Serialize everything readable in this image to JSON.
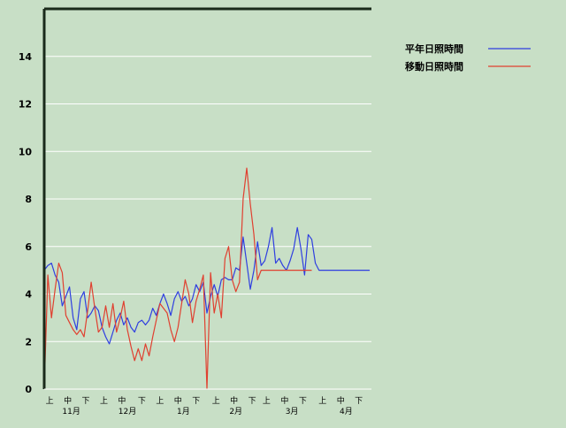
{
  "chart_data": {
    "type": "line",
    "title": "",
    "xlabel": "",
    "ylabel": "",
    "ylim": [
      0,
      16
    ],
    "y_ticks": [
      0,
      2,
      4,
      6,
      8,
      10,
      12,
      14
    ],
    "grid": "horizontal",
    "legend_position": "top-right",
    "x_period_labels": [
      "上",
      "中",
      "下",
      "上",
      "中",
      "下",
      "上",
      "中",
      "下",
      "上",
      "中",
      "下",
      "上",
      "中",
      "下",
      "上",
      "中",
      "下"
    ],
    "x_month_labels": [
      "11月",
      "12月",
      "1月",
      "2月",
      "3月",
      "4月"
    ],
    "period_start_days": [
      0,
      10,
      20,
      30,
      40,
      51,
      61,
      71,
      81,
      92,
      102,
      112,
      120,
      130,
      140,
      151,
      161,
      171
    ],
    "month_label_days": [
      15,
      46,
      77,
      106,
      137,
      167
    ],
    "x_domain_days": [
      0,
      181
    ],
    "series": [
      {
        "name": "平年日照時間",
        "color": "#2f3fe0",
        "x": [
          0,
          2,
          4,
          6,
          8,
          10,
          12,
          14,
          16,
          18,
          20,
          22,
          24,
          26,
          28,
          30,
          32,
          34,
          36,
          38,
          40,
          42,
          44,
          46,
          48,
          50,
          52,
          54,
          56,
          58,
          60,
          62,
          64,
          66,
          68,
          70,
          72,
          74,
          76,
          78,
          80,
          82,
          84,
          86,
          88,
          90,
          92,
          94,
          96,
          98,
          100,
          102,
          104,
          106,
          108,
          110,
          112,
          114,
          116,
          118,
          120,
          122,
          124,
          126,
          128,
          130,
          132,
          134,
          136,
          138,
          140,
          142,
          144,
          146,
          148,
          150,
          152,
          154,
          156,
          158,
          160,
          162,
          164,
          166,
          168,
          170,
          172,
          174,
          176,
          178,
          180
        ],
        "values": [
          5.0,
          5.2,
          5.3,
          4.8,
          4.5,
          3.5,
          3.9,
          4.3,
          3.0,
          2.5,
          3.8,
          4.1,
          3.0,
          3.2,
          3.5,
          3.3,
          2.6,
          2.2,
          1.9,
          2.4,
          2.9,
          3.2,
          2.7,
          3.0,
          2.6,
          2.4,
          2.8,
          2.9,
          2.7,
          2.9,
          3.4,
          3.1,
          3.6,
          4.0,
          3.6,
          3.1,
          3.8,
          4.1,
          3.7,
          3.9,
          3.5,
          3.8,
          4.4,
          4.1,
          4.5,
          3.2,
          3.9,
          4.4,
          3.9,
          4.6,
          4.7,
          4.6,
          4.6,
          5.1,
          5.0,
          6.4,
          5.3,
          4.2,
          5.0,
          6.2,
          5.2,
          5.4,
          6.0,
          6.8,
          5.3,
          5.5,
          5.2,
          5.0,
          5.4,
          5.9,
          6.8,
          5.9,
          4.8,
          6.5,
          6.3,
          5.3,
          5.0,
          5.0,
          5.0,
          5.0,
          5.0,
          5.0,
          5.0,
          5.0,
          5.0,
          5.0,
          5.0,
          5.0,
          5.0,
          5.0,
          5.0
        ]
      },
      {
        "name": "移動日照時間",
        "color": "#e04030",
        "x": [
          0,
          2,
          4,
          6,
          8,
          10,
          12,
          14,
          16,
          18,
          20,
          22,
          24,
          26,
          28,
          30,
          32,
          34,
          36,
          38,
          40,
          42,
          44,
          46,
          48,
          50,
          52,
          54,
          56,
          58,
          60,
          62,
          64,
          66,
          68,
          70,
          72,
          74,
          76,
          78,
          80,
          82,
          84,
          86,
          88,
          90,
          92,
          94,
          96,
          98,
          100,
          102,
          104,
          106,
          108,
          110,
          112,
          114,
          116,
          118,
          120,
          122,
          124,
          126,
          128,
          130,
          132,
          134,
          136,
          138,
          140,
          142,
          144,
          146,
          148
        ],
        "values": [
          0.0,
          4.8,
          3.0,
          4.2,
          5.3,
          4.9,
          3.1,
          2.8,
          2.5,
          2.3,
          2.5,
          2.2,
          3.3,
          4.5,
          3.4,
          2.4,
          2.6,
          3.5,
          2.6,
          3.6,
          2.4,
          3.0,
          3.7,
          2.5,
          1.8,
          1.2,
          1.7,
          1.2,
          1.9,
          1.4,
          2.2,
          2.9,
          3.6,
          3.4,
          3.2,
          2.5,
          2.0,
          2.6,
          3.6,
          4.6,
          4.0,
          2.8,
          3.7,
          4.2,
          4.8,
          0.0,
          4.9,
          3.2,
          4.0,
          3.0,
          5.5,
          6.0,
          4.6,
          4.1,
          4.5,
          8.0,
          9.3,
          7.8,
          6.5,
          4.6,
          5.0,
          5.0,
          5.0,
          5.0,
          5.0,
          5.0,
          5.0,
          5.0,
          5.0,
          5.0,
          5.0,
          5.0,
          5.0,
          5.0,
          5.0
        ]
      }
    ]
  }
}
